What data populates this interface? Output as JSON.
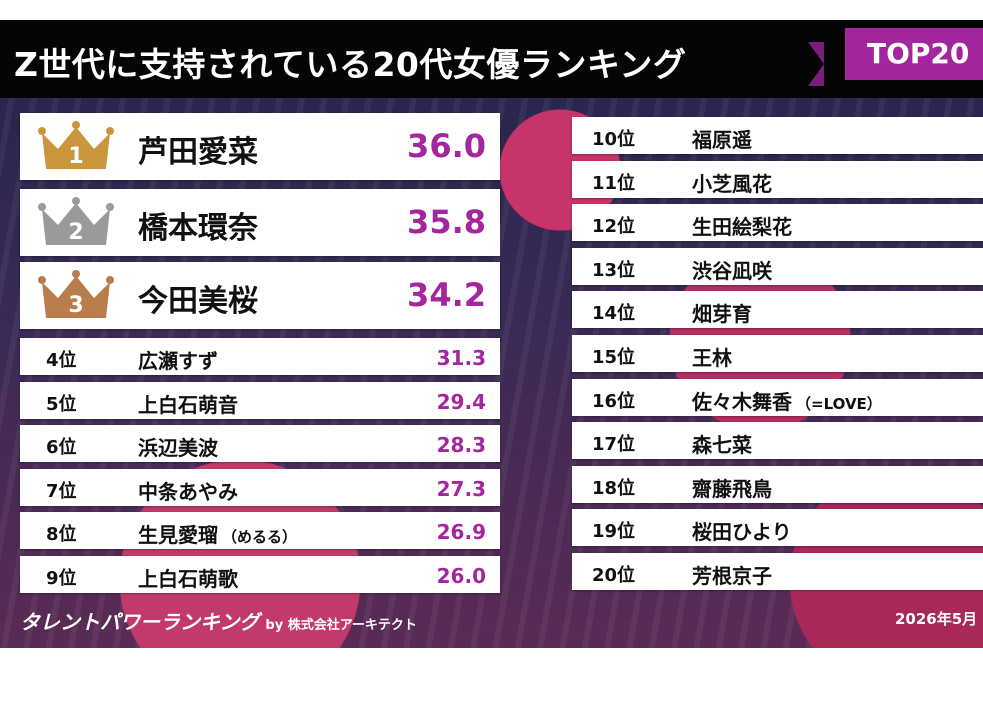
{
  "header": {
    "title": "Z世代に支持されている20代女優ランキング",
    "badge": "TOP20"
  },
  "top3": [
    {
      "rank": "1",
      "name": "芦田愛菜",
      "score": "36.0"
    },
    {
      "rank": "2",
      "name": "橋本環奈",
      "score": "35.8"
    },
    {
      "rank": "3",
      "name": "今田美桜",
      "score": "34.2"
    }
  ],
  "ranking_left": [
    {
      "rank": "4位",
      "name": "広瀬すず",
      "score": "31.3"
    },
    {
      "rank": "5位",
      "name": "上白石萌音",
      "score": "29.4"
    },
    {
      "rank": "6位",
      "name": "浜辺美波",
      "score": "28.3"
    },
    {
      "rank": "7位",
      "name": "中条あやみ",
      "score": "27.3"
    },
    {
      "rank": "8位",
      "name": "生見愛瑠",
      "note": "（めるる）",
      "score": "26.9"
    },
    {
      "rank": "9位",
      "name": "上白石萌歌",
      "score": "26.0"
    }
  ],
  "ranking_right": [
    {
      "rank": "10位",
      "name": "福原遥"
    },
    {
      "rank": "11位",
      "name": "小芝風花"
    },
    {
      "rank": "12位",
      "name": "生田絵梨花"
    },
    {
      "rank": "13位",
      "name": "渋谷凪咲"
    },
    {
      "rank": "14位",
      "name": "畑芽育"
    },
    {
      "rank": "15位",
      "name": "王林"
    },
    {
      "rank": "16位",
      "name": "佐々木舞香",
      "note": "（=LOVE）"
    },
    {
      "rank": "17位",
      "name": "森七菜"
    },
    {
      "rank": "18位",
      "name": "齋藤飛鳥"
    },
    {
      "rank": "19位",
      "name": "桜田ひより"
    },
    {
      "rank": "20位",
      "name": "芳根京子"
    }
  ],
  "footer": {
    "brand": "タレントパワーランキング",
    "by": "by 株式会社アーキテクト",
    "date": "2026年5月"
  }
}
